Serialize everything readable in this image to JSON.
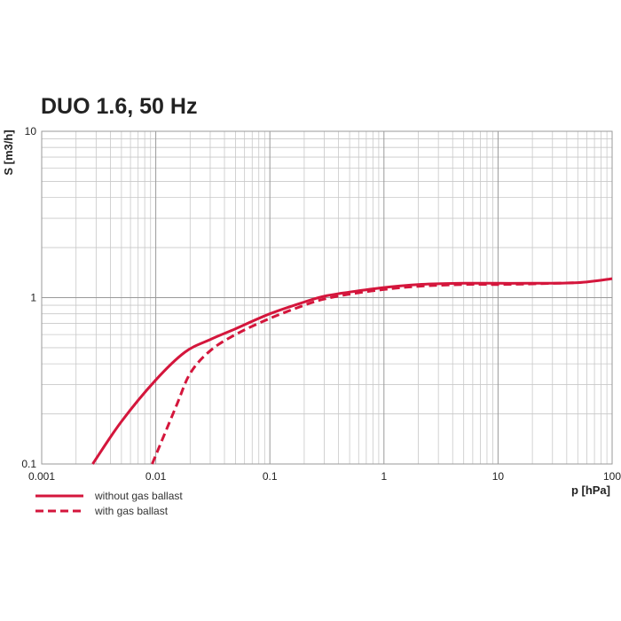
{
  "chart_data": {
    "type": "line",
    "title": "DUO 1.6, 50 Hz",
    "xlabel": "p [hPa]",
    "ylabel": "S [m3/h]",
    "x_scale": "log",
    "y_scale": "log",
    "xlim": [
      0.001,
      100
    ],
    "ylim": [
      0.1,
      10
    ],
    "x_ticks": [
      {
        "value": 0.001,
        "label": "0.001"
      },
      {
        "value": 0.01,
        "label": "0.01"
      },
      {
        "value": 0.1,
        "label": "0.1"
      },
      {
        "value": 1,
        "label": "1"
      },
      {
        "value": 10,
        "label": "10"
      },
      {
        "value": 100,
        "label": "100"
      }
    ],
    "y_ticks": [
      {
        "value": 0.1,
        "label": "0.1"
      },
      {
        "value": 1,
        "label": "1"
      },
      {
        "value": 10,
        "label": "10"
      }
    ],
    "grid": true,
    "legend_position": "bottom-left",
    "series": [
      {
        "name": "without gas ballast",
        "style": "solid",
        "color": "#d4163c",
        "x": [
          0.0028,
          0.005,
          0.01,
          0.018,
          0.03,
          0.05,
          0.1,
          0.2,
          0.3,
          0.5,
          1,
          2,
          5,
          10,
          20,
          50,
          100
        ],
        "y": [
          0.1,
          0.18,
          0.32,
          0.47,
          0.56,
          0.65,
          0.8,
          0.94,
          1.02,
          1.08,
          1.15,
          1.2,
          1.22,
          1.22,
          1.22,
          1.23,
          1.3
        ]
      },
      {
        "name": "with gas ballast",
        "style": "dashed",
        "color": "#d4163c",
        "x": [
          0.0093,
          0.015,
          0.02,
          0.03,
          0.05,
          0.1,
          0.2,
          0.3,
          0.5,
          1,
          2,
          5,
          10,
          20,
          50
        ],
        "y": [
          0.1,
          0.22,
          0.35,
          0.48,
          0.6,
          0.75,
          0.9,
          0.98,
          1.05,
          1.12,
          1.17,
          1.2,
          1.2,
          1.21,
          1.23
        ]
      }
    ]
  }
}
